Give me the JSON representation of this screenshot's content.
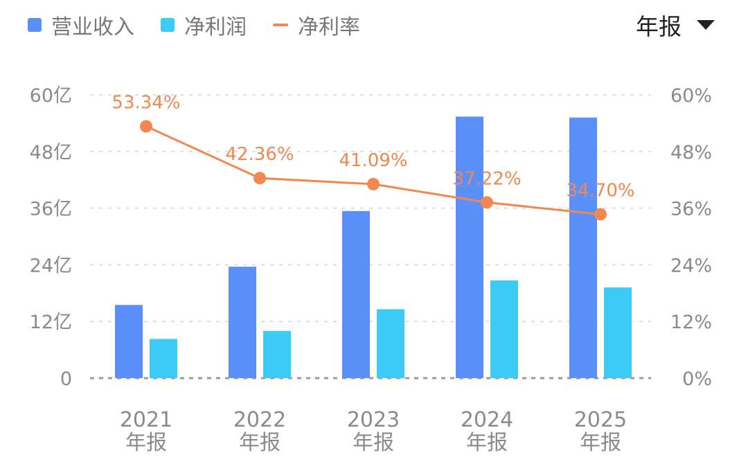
{
  "legend": {
    "revenue": "营业收入",
    "net_profit": "净利润",
    "net_margin": "净利率"
  },
  "period_selector": {
    "label": "年报",
    "icon": "caret-down-icon"
  },
  "colors": {
    "revenue": "#5b8ff9",
    "net_profit": "#3ccbf4",
    "net_margin": "#f0884f",
    "axis_text": "#8a8a8a",
    "grid": "#dddddd"
  },
  "chart_data": {
    "type": "bar",
    "categories": [
      "2021\n年报",
      "2022\n年报",
      "2023\n年报",
      "2024\n年报",
      "2025\n年报"
    ],
    "y_left": {
      "ticks": [
        "0",
        "12亿",
        "24亿",
        "36亿",
        "48亿",
        "60亿"
      ],
      "range": [
        0,
        60
      ],
      "unit": "亿"
    },
    "y_right": {
      "ticks": [
        "0%",
        "12%",
        "24%",
        "36%",
        "48%",
        "60%"
      ],
      "range": [
        0,
        60
      ],
      "unit": "%"
    },
    "series": [
      {
        "name": "营业收入",
        "type": "bar",
        "axis": "left",
        "values": [
          15.5,
          23.6,
          35.4,
          55.4,
          55.2
        ]
      },
      {
        "name": "净利润",
        "type": "bar",
        "axis": "left",
        "values": [
          8.3,
          10.0,
          14.6,
          20.7,
          19.2
        ]
      },
      {
        "name": "净利率",
        "type": "line",
        "axis": "right",
        "values": [
          53.34,
          42.36,
          41.09,
          37.22,
          34.7
        ],
        "labels": [
          "53.34%",
          "42.36%",
          "41.09%",
          "37.22%",
          "34.70%"
        ]
      }
    ],
    "grid": true,
    "legend_position": "top-left"
  }
}
